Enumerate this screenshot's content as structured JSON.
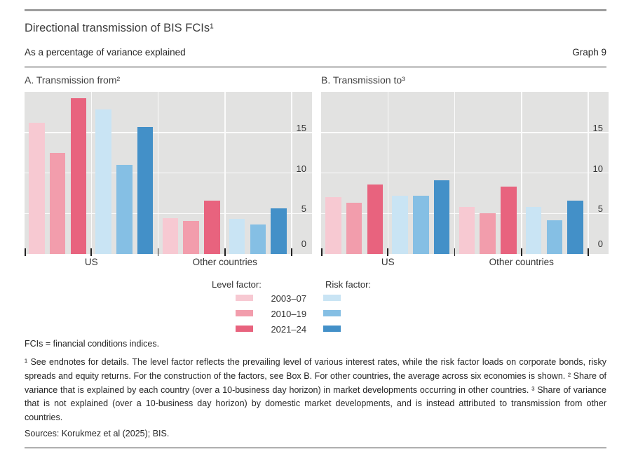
{
  "header": {
    "title": "Directional transmission of BIS FCIs¹",
    "subtitle": "As a percentage of variance explained",
    "graph_label": "Graph 9"
  },
  "colors": {
    "level": [
      "#f7c9d2",
      "#f29dac",
      "#e8637e"
    ],
    "risk": [
      "#c9e4f4",
      "#85bfe4",
      "#4390c8"
    ],
    "plot_background": "#e2e2e1",
    "gridline": "#fbfbfb",
    "tick": "#222222"
  },
  "chart_data": [
    {
      "type": "bar",
      "panel": "A",
      "title": "A. Transmission from²",
      "categories": [
        "US",
        "Other countries"
      ],
      "subgroup_factors": [
        "Level factor",
        "Risk factor"
      ],
      "series_periods": [
        "2003–07",
        "2010–19",
        "2021–24"
      ],
      "groups": [
        {
          "label": "US",
          "level": [
            16.2,
            12.5,
            19.2
          ],
          "risk": [
            17.8,
            11.0,
            15.7
          ]
        },
        {
          "label": "Other countries",
          "level": [
            4.4,
            4.1,
            6.6
          ],
          "risk": [
            4.3,
            3.6,
            5.6
          ]
        }
      ],
      "ylabel": "",
      "ylim": [
        0,
        20
      ],
      "yticks": [
        0,
        5,
        10,
        15
      ],
      "grid": true,
      "ytick_side": "right"
    },
    {
      "type": "bar",
      "panel": "B",
      "title": "B. Transmission to³",
      "categories": [
        "US",
        "Other countries"
      ],
      "subgroup_factors": [
        "Level factor",
        "Risk factor"
      ],
      "series_periods": [
        "2003–07",
        "2010–19",
        "2021–24"
      ],
      "groups": [
        {
          "label": "US",
          "level": [
            7.0,
            6.3,
            8.6
          ],
          "risk": [
            7.2,
            7.2,
            9.1
          ]
        },
        {
          "label": "Other countries",
          "level": [
            5.8,
            5.0,
            8.3
          ],
          "risk": [
            5.8,
            4.2,
            6.6
          ]
        }
      ],
      "ylabel": "",
      "ylim": [
        0,
        20
      ],
      "yticks": [
        0,
        5,
        10,
        15
      ],
      "grid": true,
      "ytick_side": "right"
    }
  ],
  "legend": {
    "level_header": "Level factor:",
    "risk_header": "Risk factor:",
    "periods": [
      "2003–07",
      "2010–19",
      "2021–24"
    ]
  },
  "footnotes": {
    "definition": "FCIs = financial conditions indices.",
    "note": "¹  See endnotes for details. The level factor reflects the prevailing level of various interest rates, while the risk factor loads on corporate bonds, risky spreads and equity returns. For the construction of the factors, see Box B. For other countries, the average across six economies is shown.  ²  Share of variance that is explained by each country (over a 10-business day horizon) in market developments occurring in other countries.  ³  Share of variance that is not explained (over a 10-business day horizon) by domestic market developments, and is instead attributed to transmission from other countries.",
    "sources": "Sources: Korukmez et al (2025); BIS."
  }
}
